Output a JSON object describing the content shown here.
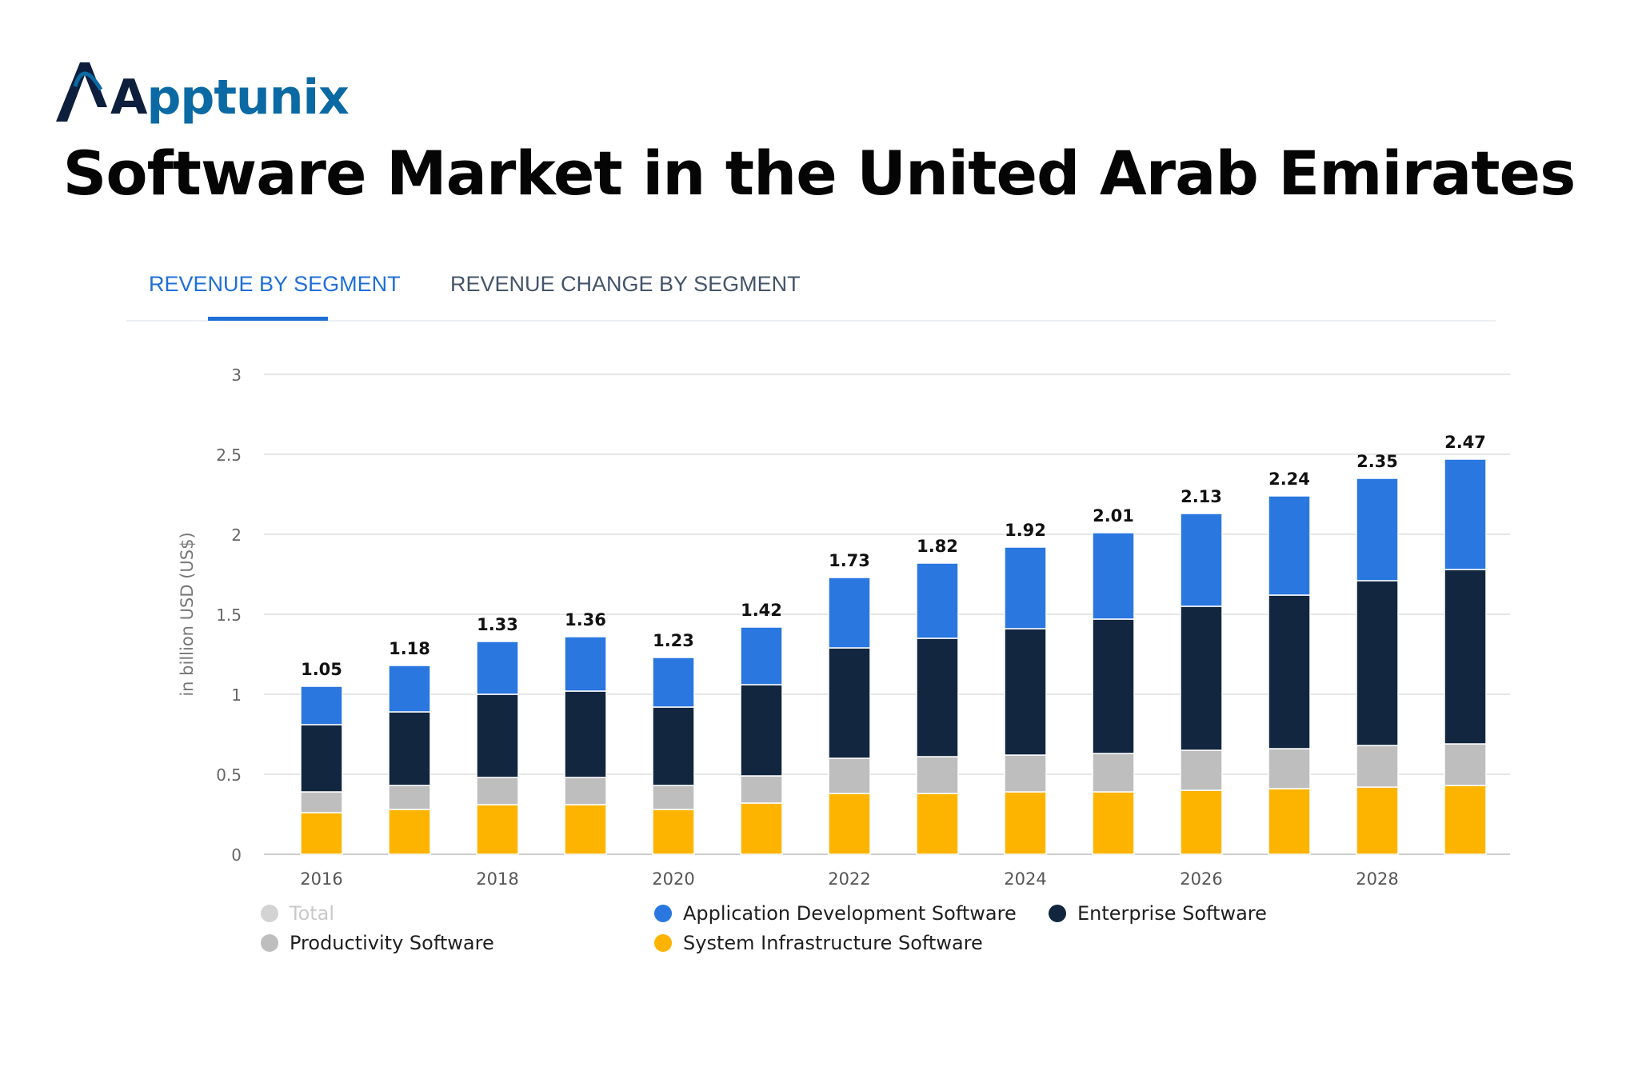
{
  "brand": {
    "name_first": "A",
    "name_rest": "pptunix"
  },
  "title": "Software Market in the United Arab Emirates",
  "tabs": [
    {
      "label": "REVENUE BY SEGMENT",
      "active": true
    },
    {
      "label": "REVENUE CHANGE BY SEGMENT",
      "active": false
    }
  ],
  "colors": {
    "app_dev": "#2a77e0",
    "enterprise": "#12263f",
    "productivity": "#bebebe",
    "system_infra": "#fdb400",
    "total": "#d3d3d3",
    "grid": "#e6e6e6",
    "tab_active": "#1f6fd6"
  },
  "legend": [
    {
      "label": "Total",
      "color": "#d3d3d3",
      "dimmed": true
    },
    {
      "label": "Application Development Software",
      "color": "#2a77e0"
    },
    {
      "label": "Enterprise Software",
      "color": "#12263f"
    },
    {
      "label": "Productivity Software",
      "color": "#bebebe"
    },
    {
      "label": "System Infrastructure Software",
      "color": "#fdb400"
    }
  ],
  "chart_data": {
    "type": "bar",
    "stacked": true,
    "title": "Software Market in the United Arab Emirates",
    "xlabel": "",
    "ylabel": "in billion USD (US$)",
    "ylim": [
      0,
      3
    ],
    "yticks": [
      "0",
      "0.5",
      "1",
      "1.5",
      "2",
      "2.5",
      "3"
    ],
    "grid": true,
    "categories": [
      "2016",
      "2017",
      "2018",
      "2019",
      "2020",
      "2021",
      "2022",
      "2023",
      "2024",
      "2025",
      "2026",
      "2027",
      "2028",
      "2029"
    ],
    "xtick_labels": [
      "2016",
      "",
      "2018",
      "",
      "2020",
      "",
      "2022",
      "",
      "2024",
      "",
      "2026",
      "",
      "2028",
      ""
    ],
    "totals": [
      "1.05",
      "1.18",
      "1.33",
      "1.36",
      "1.23",
      "1.42",
      "1.73",
      "1.82",
      "1.92",
      "2.01",
      "2.13",
      "2.24",
      "2.35",
      "2.47"
    ],
    "series": [
      {
        "name": "System Infrastructure Software",
        "color": "#fdb400",
        "values": [
          0.26,
          0.28,
          0.31,
          0.31,
          0.28,
          0.32,
          0.38,
          0.38,
          0.39,
          0.39,
          0.4,
          0.41,
          0.42,
          0.43
        ]
      },
      {
        "name": "Productivity Software",
        "color": "#bebebe",
        "values": [
          0.13,
          0.15,
          0.17,
          0.17,
          0.15,
          0.17,
          0.22,
          0.23,
          0.23,
          0.24,
          0.25,
          0.25,
          0.26,
          0.26
        ]
      },
      {
        "name": "Enterprise Software",
        "color": "#12263f",
        "values": [
          0.42,
          0.46,
          0.52,
          0.54,
          0.49,
          0.57,
          0.69,
          0.74,
          0.79,
          0.84,
          0.9,
          0.96,
          1.03,
          1.09
        ]
      },
      {
        "name": "Application Development Software",
        "color": "#2a77e0",
        "values": [
          0.24,
          0.29,
          0.33,
          0.34,
          0.31,
          0.36,
          0.44,
          0.47,
          0.51,
          0.54,
          0.58,
          0.62,
          0.64,
          0.69
        ]
      }
    ]
  }
}
